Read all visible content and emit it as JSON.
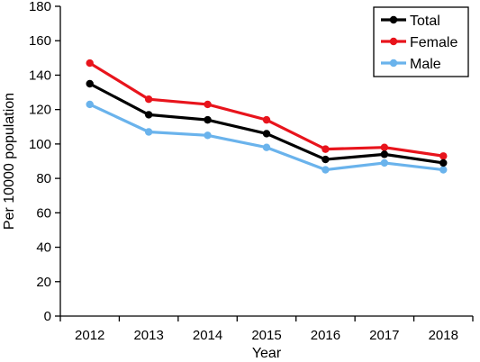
{
  "chart_data": {
    "type": "line",
    "title": "",
    "xlabel": "Year",
    "ylabel": "Per 10000 population",
    "categories": [
      "2012",
      "2013",
      "2014",
      "2015",
      "2016",
      "2017",
      "2018"
    ],
    "ylim": [
      0,
      180
    ],
    "yticks": [
      0,
      20,
      40,
      60,
      80,
      100,
      120,
      140,
      160,
      180
    ],
    "grid": false,
    "legend_position": "top-right",
    "series": [
      {
        "name": "Total",
        "color": "#000000",
        "values": [
          135,
          117,
          114,
          106,
          91,
          94,
          89
        ]
      },
      {
        "name": "Female",
        "color": "#e8141c",
        "values": [
          147,
          126,
          123,
          114,
          97,
          98,
          93
        ]
      },
      {
        "name": "Male",
        "color": "#6ab3ec",
        "values": [
          123,
          107,
          105,
          98,
          85,
          89,
          85
        ]
      }
    ]
  }
}
